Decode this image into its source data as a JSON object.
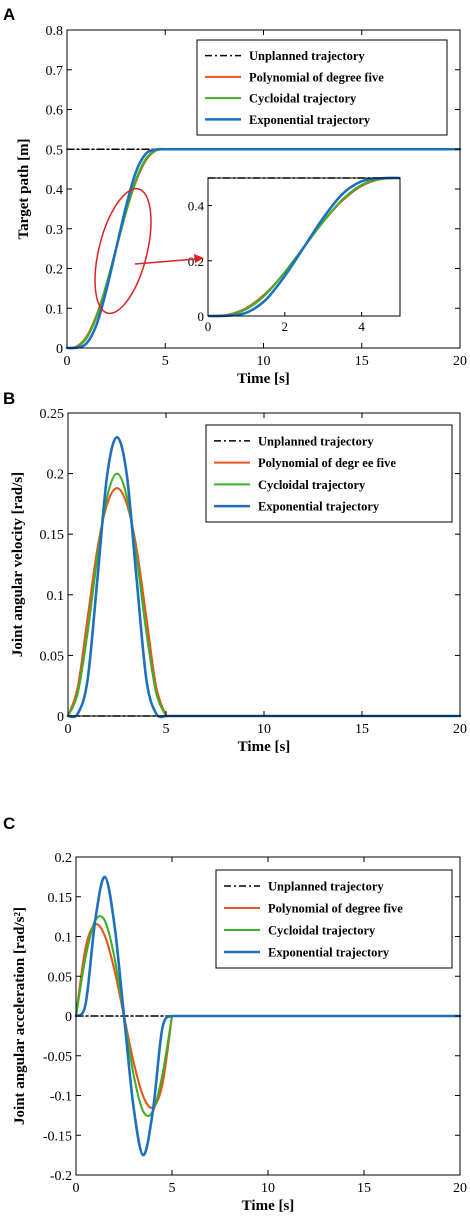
{
  "figure": {
    "panel_labels": [
      "A",
      "B",
      "C"
    ]
  },
  "colors": {
    "unplanned": "#000000",
    "polynomial": "#e8541e",
    "cycloidal": "#3fae2a",
    "exponential": "#1f6fbf",
    "annotation": "#e02020"
  },
  "chart_data": [
    {
      "type": "line",
      "panel": "A",
      "xlabel": "Time [s]",
      "ylabel": "Target path [m]",
      "xlim": [
        0,
        20
      ],
      "ylim": [
        0,
        0.8
      ],
      "xticks": [
        0,
        5,
        10,
        15,
        20
      ],
      "yticks": [
        0,
        0.1,
        0.2,
        0.3,
        0.4,
        0.5,
        0.6,
        0.7,
        0.8
      ],
      "ytick_labels": [
        "0",
        "0.1",
        "0.2",
        "0.3",
        "0.4",
        "0.5",
        "0.6",
        "0.7",
        "0.8"
      ],
      "legend": "top-right",
      "grid": false,
      "series": [
        {
          "name": "Unplanned trajectory",
          "style": "dashdot",
          "x": [
            0,
            20
          ],
          "y": [
            0.5,
            0.5
          ]
        },
        {
          "name": "Polynomial of degree five",
          "x": [
            0,
            0.5,
            1,
            1.5,
            2,
            2.5,
            3,
            3.5,
            4,
            4.5,
            5,
            20
          ],
          "y": [
            0,
            0.004,
            0.029,
            0.082,
            0.158,
            0.25,
            0.342,
            0.418,
            0.471,
            0.496,
            0.5,
            0.5
          ]
        },
        {
          "name": "Cycloidal trajectory",
          "x": [
            0,
            0.5,
            1,
            1.5,
            2,
            2.5,
            3,
            3.5,
            4,
            4.5,
            5,
            20
          ],
          "y": [
            0,
            0.003,
            0.025,
            0.078,
            0.159,
            0.25,
            0.341,
            0.422,
            0.475,
            0.497,
            0.5,
            0.5
          ]
        },
        {
          "name": "Exponential trajectory",
          "x": [
            0,
            0.5,
            1,
            1.5,
            2,
            2.5,
            3,
            3.5,
            4,
            4.5,
            5,
            20
          ],
          "y": [
            0,
            0.001,
            0.012,
            0.058,
            0.145,
            0.25,
            0.355,
            0.442,
            0.488,
            0.499,
            0.5,
            0.5
          ]
        }
      ],
      "inset": {
        "xlim": [
          0,
          5
        ],
        "ylim": [
          0,
          0.5
        ],
        "xticks": [
          0,
          2,
          4
        ],
        "yticks": [
          0,
          0.2,
          0.4
        ],
        "ytick_labels": [
          "0",
          "0.2",
          "0.4"
        ]
      }
    },
    {
      "type": "line",
      "panel": "B",
      "xlabel": "Time [s]",
      "ylabel": "Joint angular velocity [rad/s]",
      "xlim": [
        0,
        20
      ],
      "ylim": [
        0,
        0.25
      ],
      "xticks": [
        0,
        5,
        10,
        15,
        20
      ],
      "yticks": [
        0,
        0.05,
        0.1,
        0.15,
        0.2,
        0.25
      ],
      "ytick_labels": [
        "0",
        "0.05",
        "0.1",
        "0.15",
        "0.2",
        "0.25"
      ],
      "legend": "top-right",
      "grid": false,
      "series": [
        {
          "name": "Unplanned trajectory",
          "style": "dashdot",
          "x": [
            0,
            20
          ],
          "y": [
            0,
            0
          ]
        },
        {
          "name": "Polynomial of degr ee five",
          "x": [
            0,
            0.5,
            1,
            1.5,
            2,
            2.5,
            3,
            3.5,
            4,
            4.5,
            5,
            20
          ],
          "y": [
            0,
            0.024,
            0.081,
            0.138,
            0.175,
            0.188,
            0.175,
            0.138,
            0.081,
            0.024,
            0,
            0
          ]
        },
        {
          "name": "Cycloidal trajectory",
          "x": [
            0,
            0.5,
            1,
            1.5,
            2,
            2.5,
            3,
            3.5,
            4,
            4.5,
            5,
            20
          ],
          "y": [
            0,
            0.019,
            0.069,
            0.131,
            0.181,
            0.2,
            0.181,
            0.131,
            0.069,
            0.019,
            0,
            0
          ]
        },
        {
          "name": "Exponential trajectory",
          "x": [
            0,
            0.5,
            1,
            1.5,
            2,
            2.5,
            3,
            3.5,
            4,
            4.5,
            5,
            20
          ],
          "y": [
            0,
            0.002,
            0.03,
            0.113,
            0.199,
            0.23,
            0.199,
            0.113,
            0.03,
            0.002,
            0,
            0
          ]
        }
      ]
    },
    {
      "type": "line",
      "panel": "C",
      "xlabel": "Time [s]",
      "ylabel": "Joint angular acceleration [rad/s²]",
      "xlim": [
        0,
        20
      ],
      "ylim": [
        -0.2,
        0.2
      ],
      "xticks": [
        0,
        5,
        10,
        15,
        20
      ],
      "yticks": [
        -0.2,
        -0.15,
        -0.1,
        -0.05,
        0,
        0.05,
        0.1,
        0.15,
        0.2
      ],
      "ytick_labels": [
        "-0.2",
        "-0.15",
        "-0.1",
        "-0.05",
        "0",
        "0.05",
        "0.1",
        "0.15",
        "0.2"
      ],
      "legend": "top-right",
      "grid": false,
      "series": [
        {
          "name": "Unplanned trajectory",
          "style": "dashdot",
          "x": [
            0,
            20
          ],
          "y": [
            0,
            0
          ]
        },
        {
          "name": "Polynomial of degree five",
          "x": [
            0,
            0.5,
            1,
            1.5,
            2,
            2.5,
            3,
            3.5,
            4,
            4.5,
            5,
            20
          ],
          "y": [
            0,
            0.086,
            0.115,
            0.101,
            0.058,
            0,
            -0.058,
            -0.101,
            -0.115,
            -0.086,
            0,
            0
          ]
        },
        {
          "name": "Cycloidal trajectory",
          "x": [
            0,
            0.5,
            1,
            1.5,
            2,
            2.5,
            3,
            3.5,
            4,
            4.5,
            5,
            20
          ],
          "y": [
            0,
            0.074,
            0.12,
            0.12,
            0.074,
            0,
            -0.074,
            -0.12,
            -0.12,
            -0.074,
            0,
            0
          ]
        },
        {
          "name": "Exponential trajectory",
          "x": [
            0,
            0.5,
            1,
            1.5,
            2,
            2.5,
            3,
            3.5,
            4,
            4.5,
            5,
            20
          ],
          "y": [
            0,
            0.015,
            0.12,
            0.175,
            0.115,
            0,
            -0.115,
            -0.175,
            -0.12,
            -0.015,
            0,
            0
          ]
        }
      ]
    }
  ]
}
